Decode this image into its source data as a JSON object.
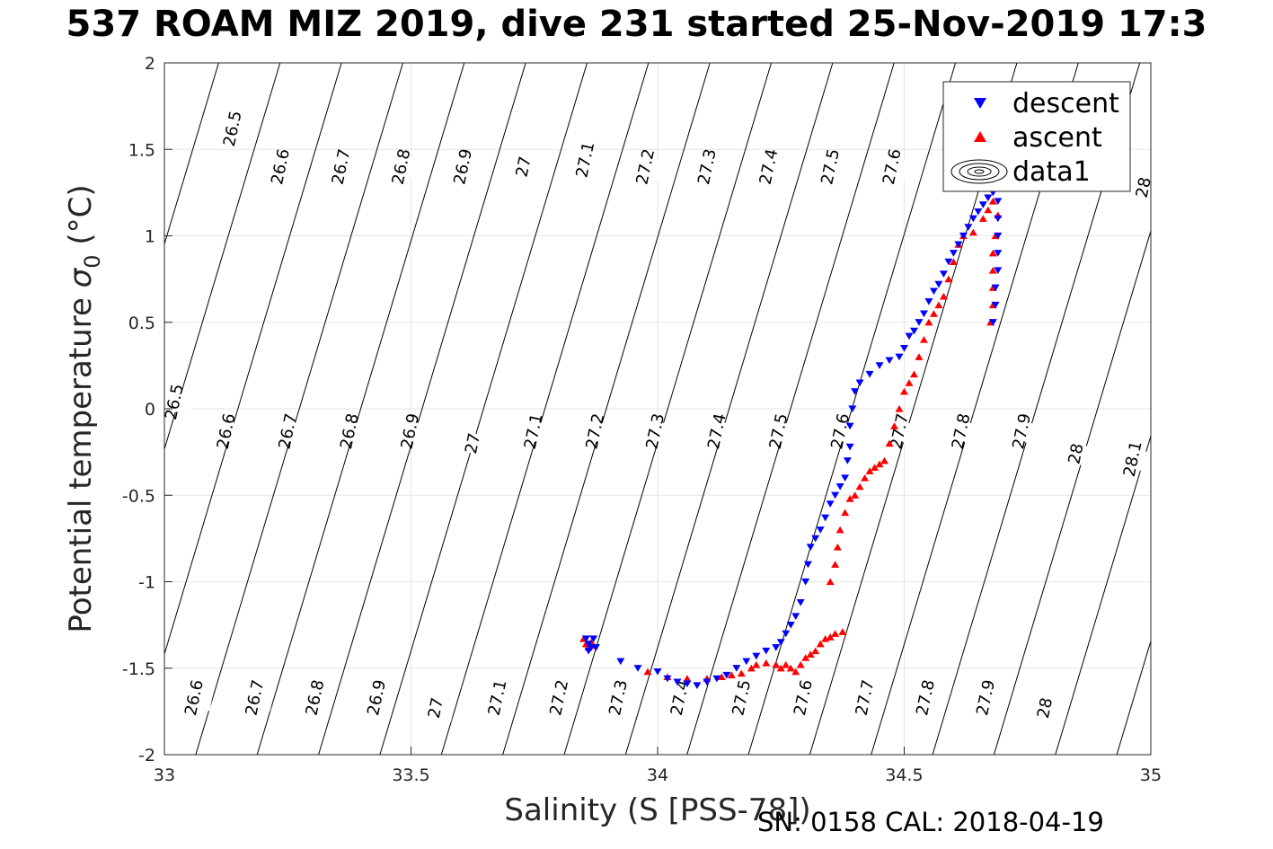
{
  "chart_data": {
    "type": "scatter",
    "title": "537 ROAM MIZ 2019, dive 231 started 25-Nov-2019 17:3",
    "xlabel": "Salinity (S [PSS-78])",
    "ylabel_main": "Potential temperature ",
    "ylabel_sigma": "σ",
    "ylabel_sub": "0",
    "ylabel_unit": " (°C)",
    "footer": "SN: 0158  CAL: 2018-04-19",
    "xlim": [
      33,
      35
    ],
    "ylim": [
      -2,
      2
    ],
    "x_ticks": [
      "33",
      "33.5",
      "34",
      "34.5",
      "35"
    ],
    "y_ticks": [
      "2",
      "1.5",
      "1",
      "0.5",
      "0",
      "-0.5",
      "-1",
      "-1.5",
      "-2"
    ],
    "grid": true,
    "legend_position": "top-right",
    "legend": [
      {
        "label": "descent",
        "marker": "triangle-down",
        "color": "#0000ff"
      },
      {
        "label": "ascent",
        "marker": "triangle-up",
        "color": "#ff0000"
      },
      {
        "label": "data1",
        "marker": "contour",
        "color": "#000000"
      }
    ],
    "contour_labels": [
      {
        "text": "26.5",
        "x": 33.138,
        "y": 1.62
      },
      {
        "text": "26.6",
        "x": 33.235,
        "y": 1.4
      },
      {
        "text": "26.7",
        "x": 33.358,
        "y": 1.4
      },
      {
        "text": "26.8",
        "x": 33.48,
        "y": 1.4
      },
      {
        "text": "26.9",
        "x": 33.605,
        "y": 1.4
      },
      {
        "text": "27",
        "x": 33.728,
        "y": 1.4
      },
      {
        "text": "27.1",
        "x": 33.853,
        "y": 1.44
      },
      {
        "text": "27.2",
        "x": 33.975,
        "y": 1.4
      },
      {
        "text": "27.3",
        "x": 34.1,
        "y": 1.4
      },
      {
        "text": "27.4",
        "x": 34.225,
        "y": 1.4
      },
      {
        "text": "27.5",
        "x": 34.35,
        "y": 1.4
      },
      {
        "text": "27.6",
        "x": 34.475,
        "y": 1.4
      },
      {
        "text": "28",
        "x": 34.985,
        "y": 1.28
      },
      {
        "text": "26.5",
        "x": 33.02,
        "y": 0.04
      },
      {
        "text": "26.6",
        "x": 33.125,
        "y": -0.13
      },
      {
        "text": "26.7",
        "x": 33.25,
        "y": -0.13
      },
      {
        "text": "26.8",
        "x": 33.375,
        "y": -0.13
      },
      {
        "text": "26.9",
        "x": 33.498,
        "y": -0.13
      },
      {
        "text": "27",
        "x": 33.625,
        "y": -0.2
      },
      {
        "text": "27.1",
        "x": 33.748,
        "y": -0.13
      },
      {
        "text": "27.2",
        "x": 33.873,
        "y": -0.13
      },
      {
        "text": "27.3",
        "x": 33.995,
        "y": -0.13
      },
      {
        "text": "27.4",
        "x": 34.12,
        "y": -0.13
      },
      {
        "text": "27.5",
        "x": 34.245,
        "y": -0.13
      },
      {
        "text": "27.6",
        "x": 34.37,
        "y": -0.13
      },
      {
        "text": "27.7",
        "x": 34.49,
        "y": -0.13
      },
      {
        "text": "27.8",
        "x": 34.615,
        "y": -0.13
      },
      {
        "text": "27.9",
        "x": 34.738,
        "y": -0.13
      },
      {
        "text": "28",
        "x": 34.848,
        "y": -0.26
      },
      {
        "text": "28.1",
        "x": 34.963,
        "y": -0.29
      },
      {
        "text": "26.6",
        "x": 33.06,
        "y": -1.67
      },
      {
        "text": "26.7",
        "x": 33.183,
        "y": -1.67
      },
      {
        "text": "26.8",
        "x": 33.305,
        "y": -1.67
      },
      {
        "text": "26.9",
        "x": 33.43,
        "y": -1.67
      },
      {
        "text": "27",
        "x": 33.55,
        "y": -1.73
      },
      {
        "text": "27.1",
        "x": 33.675,
        "y": -1.67
      },
      {
        "text": "27.2",
        "x": 33.8,
        "y": -1.67
      },
      {
        "text": "27.3",
        "x": 33.92,
        "y": -1.67
      },
      {
        "text": "27.4",
        "x": 34.045,
        "y": -1.67
      },
      {
        "text": "27.5",
        "x": 34.17,
        "y": -1.67
      },
      {
        "text": "27.6",
        "x": 34.295,
        "y": -1.67
      },
      {
        "text": "27.7",
        "x": 34.42,
        "y": -1.67
      },
      {
        "text": "27.8",
        "x": 34.543,
        "y": -1.67
      },
      {
        "text": "27.9",
        "x": 34.665,
        "y": -1.67
      },
      {
        "text": "28",
        "x": 34.785,
        "y": -1.73
      }
    ],
    "descent": [
      [
        33.855,
        -1.33
      ],
      [
        33.86,
        -1.36
      ],
      [
        33.865,
        -1.38
      ],
      [
        33.87,
        -1.33
      ],
      [
        33.875,
        -1.38
      ],
      [
        33.86,
        -1.4
      ],
      [
        33.925,
        -1.46
      ],
      [
        33.96,
        -1.5
      ],
      [
        34.0,
        -1.52
      ],
      [
        34.02,
        -1.56
      ],
      [
        34.04,
        -1.58
      ],
      [
        34.06,
        -1.59
      ],
      [
        34.08,
        -1.6
      ],
      [
        34.1,
        -1.58
      ],
      [
        34.12,
        -1.56
      ],
      [
        34.14,
        -1.54
      ],
      [
        34.16,
        -1.5
      ],
      [
        34.18,
        -1.46
      ],
      [
        34.2,
        -1.43
      ],
      [
        34.22,
        -1.4
      ],
      [
        34.24,
        -1.38
      ],
      [
        34.25,
        -1.35
      ],
      [
        34.26,
        -1.3
      ],
      [
        34.27,
        -1.25
      ],
      [
        34.28,
        -1.2
      ],
      [
        34.29,
        -1.12
      ],
      [
        34.3,
        -1.0
      ],
      [
        34.305,
        -0.9
      ],
      [
        34.31,
        -0.8
      ],
      [
        34.32,
        -0.75
      ],
      [
        34.33,
        -0.7
      ],
      [
        34.34,
        -0.63
      ],
      [
        34.35,
        -0.55
      ],
      [
        34.36,
        -0.5
      ],
      [
        34.37,
        -0.45
      ],
      [
        34.38,
        -0.4
      ],
      [
        34.385,
        -0.3
      ],
      [
        34.39,
        -0.22
      ],
      [
        34.39,
        -0.1
      ],
      [
        34.395,
        0.0
      ],
      [
        34.4,
        0.1
      ],
      [
        34.41,
        0.15
      ],
      [
        34.43,
        0.2
      ],
      [
        34.45,
        0.25
      ],
      [
        34.47,
        0.28
      ],
      [
        34.49,
        0.3
      ],
      [
        34.5,
        0.35
      ],
      [
        34.51,
        0.42
      ],
      [
        34.52,
        0.45
      ],
      [
        34.53,
        0.5
      ],
      [
        34.54,
        0.55
      ],
      [
        34.55,
        0.62
      ],
      [
        34.56,
        0.68
      ],
      [
        34.57,
        0.72
      ],
      [
        34.58,
        0.78
      ],
      [
        34.59,
        0.85
      ],
      [
        34.6,
        0.9
      ],
      [
        34.61,
        0.95
      ],
      [
        34.62,
        1.0
      ],
      [
        34.63,
        1.05
      ],
      [
        34.64,
        1.1
      ],
      [
        34.65,
        1.14
      ],
      [
        34.66,
        1.18
      ],
      [
        34.67,
        1.22
      ],
      [
        34.68,
        1.25
      ],
      [
        34.69,
        1.2
      ],
      [
        34.69,
        1.1
      ],
      [
        34.69,
        1.0
      ],
      [
        34.69,
        0.9
      ],
      [
        34.69,
        0.8
      ],
      [
        34.685,
        0.7
      ],
      [
        34.685,
        0.6
      ],
      [
        34.68,
        0.5
      ]
    ],
    "ascent": [
      [
        33.85,
        -1.33
      ],
      [
        33.855,
        -1.36
      ],
      [
        33.86,
        -1.38
      ],
      [
        33.865,
        -1.35
      ],
      [
        33.87,
        -1.37
      ],
      [
        33.98,
        -1.52
      ],
      [
        34.02,
        -1.55
      ],
      [
        34.06,
        -1.56
      ],
      [
        34.1,
        -1.56
      ],
      [
        34.13,
        -1.55
      ],
      [
        34.15,
        -1.54
      ],
      [
        34.17,
        -1.53
      ],
      [
        34.19,
        -1.5
      ],
      [
        34.2,
        -1.48
      ],
      [
        34.22,
        -1.47
      ],
      [
        34.24,
        -1.48
      ],
      [
        34.25,
        -1.5
      ],
      [
        34.26,
        -1.48
      ],
      [
        34.27,
        -1.5
      ],
      [
        34.28,
        -1.52
      ],
      [
        34.29,
        -1.48
      ],
      [
        34.3,
        -1.44
      ],
      [
        34.31,
        -1.42
      ],
      [
        34.32,
        -1.4
      ],
      [
        34.33,
        -1.36
      ],
      [
        34.34,
        -1.33
      ],
      [
        34.35,
        -1.32
      ],
      [
        34.36,
        -1.3
      ],
      [
        34.375,
        -1.29
      ],
      [
        34.35,
        -1.0
      ],
      [
        34.36,
        -0.9
      ],
      [
        34.365,
        -0.8
      ],
      [
        34.37,
        -0.7
      ],
      [
        34.38,
        -0.6
      ],
      [
        34.39,
        -0.52
      ],
      [
        34.4,
        -0.5
      ],
      [
        34.41,
        -0.45
      ],
      [
        34.42,
        -0.4
      ],
      [
        34.43,
        -0.36
      ],
      [
        34.44,
        -0.34
      ],
      [
        34.45,
        -0.32
      ],
      [
        34.46,
        -0.3
      ],
      [
        34.47,
        -0.2
      ],
      [
        34.48,
        -0.1
      ],
      [
        34.49,
        0.0
      ],
      [
        34.5,
        0.1
      ],
      [
        34.51,
        0.15
      ],
      [
        34.52,
        0.2
      ],
      [
        34.53,
        0.3
      ],
      [
        34.54,
        0.4
      ],
      [
        34.55,
        0.5
      ],
      [
        34.56,
        0.55
      ],
      [
        34.57,
        0.6
      ],
      [
        34.58,
        0.65
      ],
      [
        34.59,
        0.75
      ],
      [
        34.6,
        0.85
      ],
      [
        34.61,
        0.95
      ],
      [
        34.62,
        1.0
      ],
      [
        34.64,
        1.02
      ],
      [
        34.66,
        1.1
      ],
      [
        34.67,
        1.15
      ],
      [
        34.68,
        1.2
      ],
      [
        34.69,
        1.12
      ],
      [
        34.685,
        1.0
      ],
      [
        34.68,
        0.9
      ],
      [
        34.68,
        0.8
      ],
      [
        34.68,
        0.7
      ],
      [
        34.68,
        0.6
      ],
      [
        34.675,
        0.5
      ]
    ]
  }
}
